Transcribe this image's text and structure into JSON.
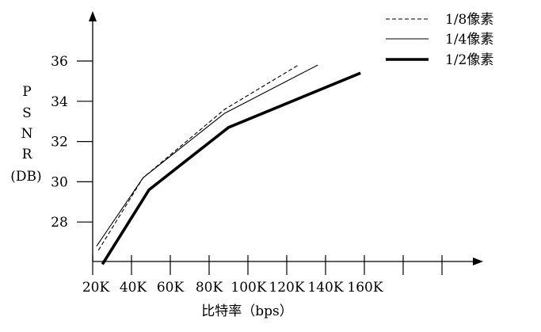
{
  "chart_data": {
    "type": "line",
    "title": "",
    "xlabel": "比特率（bps）",
    "ylabel": [
      "P",
      "S",
      "N",
      "R",
      "(DB)"
    ],
    "x_ticks": [
      "20K",
      "40K",
      "60K",
      "80K",
      "100K",
      "120K",
      "140K",
      "160K"
    ],
    "y_ticks": [
      "28",
      "30",
      "32",
      "34",
      "36"
    ],
    "xlim": [
      20,
      200
    ],
    "ylim": [
      25.9,
      38.2
    ],
    "legend_position": "top-right",
    "series": [
      {
        "name": "1/8像素",
        "style": "dashed",
        "color": "#000000",
        "points": [
          [
            23,
            26.6
          ],
          [
            46,
            30.2
          ],
          [
            88,
            33.6
          ],
          [
            126,
            35.8
          ]
        ]
      },
      {
        "name": "1/4像素",
        "style": "thin",
        "color": "#000000",
        "points": [
          [
            22,
            26.8
          ],
          [
            46,
            30.2
          ],
          [
            88,
            33.4
          ],
          [
            136,
            35.8
          ]
        ]
      },
      {
        "name": "1/2像素",
        "style": "thick",
        "color": "#000000",
        "points": [
          [
            25,
            25.9
          ],
          [
            49,
            29.6
          ],
          [
            90,
            32.7
          ],
          [
            158,
            35.4
          ]
        ]
      }
    ]
  }
}
